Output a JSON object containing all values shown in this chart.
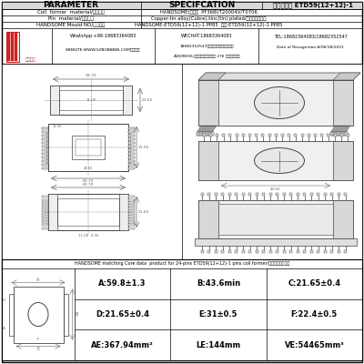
{
  "title": "煥升 ETD59(12+12)-1",
  "param_label": "PARAMETER",
  "spec_label": "SPECIFCATION",
  "product_name": "品名：煥升 ETD59(12+12)-1",
  "row1_param": "Coil  former  material/线圈材料",
  "row1_spec": "HANDSOME(振升）  PF368I/T20004V/T0706",
  "row2_param": "Pin  material/脚子材料",
  "row2_spec": "Copper-tin alloy(Cubre),tinc(tin) plated/镀色铜锡合金班",
  "row3_param": "HANDSOME Mould NO/模具品名",
  "row3_spec": "HANDSOME-ETD59(12+12)-1 PP85  振升-ETD59(12+12)-1 PP85",
  "contact_whatsapp": "WhatsApp:+86-18683364083",
  "contact_wechat": "WECHAT:18683364083",
  "contact_tel": "TEL:18682364083/18682352547",
  "contact_wechat2": "18682352547（微信同号）索图服务站",
  "contact_website": "WEBSITE:WWW.SZBOBBBIN.COM（网站）",
  "contact_address": "ADDRESS:东莞市石排下沙大道 276 号振升工业园",
  "contact_date": "Date of Recognition:8/06/18/2021",
  "matching_note": "HANDSOME matching Core data  product for 24-pins ETD59(12+12)-1 pins coil former/振升磁芯相关数据",
  "specs": {
    "A": "59.8±1.3",
    "B": "43.6min",
    "C": "21.65±0.4",
    "D": "21.65±0.4",
    "E": "31±0.5",
    "F": "22.4±0.5",
    "AE": "367.94mm²",
    "LE": "144mm",
    "VE": "54465mm³"
  },
  "bg_color": "#ffffff",
  "border_color": "#000000",
  "line_color": "#333333",
  "header_bg": "#d8d8d8",
  "watermark_color": "#e8b0b0",
  "logo_color": "#cc2222",
  "drawing_line_color": "#444444",
  "dim_line_color": "#666666"
}
